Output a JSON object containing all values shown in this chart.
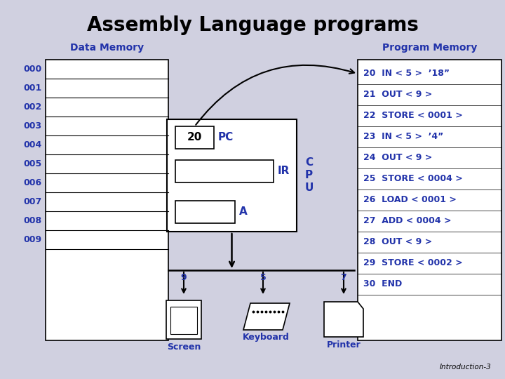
{
  "title": "Assembly Language programs",
  "title_fontsize": 20,
  "title_fontweight": "bold",
  "bg_color": "#d0d0e0",
  "data_memory_label": "Data Memory",
  "program_memory_label": "Program Memory",
  "data_memory_rows": [
    "000",
    "001",
    "002",
    "003",
    "004",
    "005",
    "006",
    "007",
    "008",
    "009"
  ],
  "program_memory_lines": [
    "20  IN < 5 >  ’18”",
    "21  OUT < 9 >",
    "22  STORE < 0001 >",
    "23  IN < 5 >  ’4”",
    "24  OUT < 9 >",
    "25  STORE < 0004 >",
    "26  LOAD < 0001 >",
    "27  ADD < 0004 >",
    "28  OUT < 9 >",
    "29  STORE < 0002 >",
    "30  END"
  ],
  "cpu_pc_value": "20",
  "cpu_pc_label": "PC",
  "cpu_ir_label": "IR",
  "cpu_a_label": "A",
  "cpu_label_c": "C",
  "cpu_label_p": "P",
  "cpu_label_u": "U",
  "device_screen_label": "Screen",
  "device_keyboard_label": "Keyboard",
  "device_printer_label": "Printer",
  "device_screen_num": "9",
  "device_keyboard_num": "5",
  "device_printer_num": "7",
  "footer_text": "Introduction-3",
  "line_color": "#000000",
  "text_color": "#2233aa",
  "label_fontsize": 10,
  "addr_fontsize": 9,
  "pm_fontsize": 9
}
